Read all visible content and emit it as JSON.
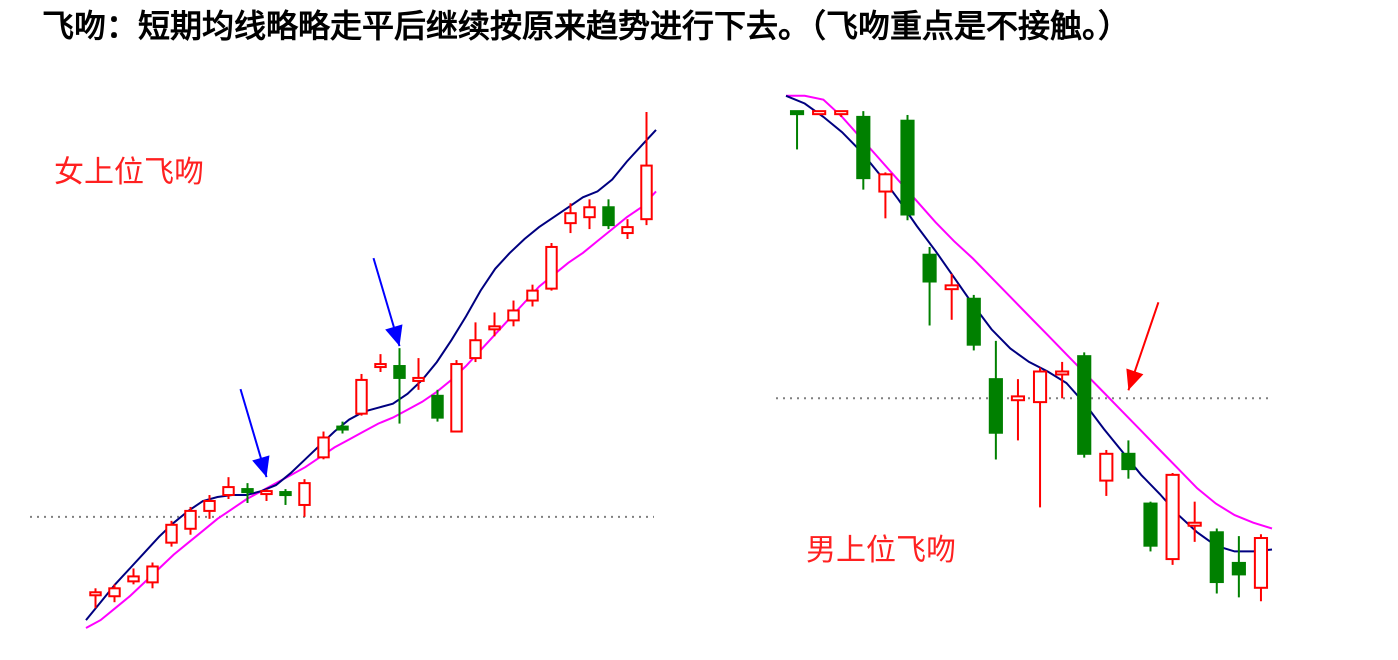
{
  "heading": "飞吻：短期均线略略走平后继续按原来趋势进行下去。（飞吻重点是不接触。）",
  "colors": {
    "up": "#ff0000",
    "down": "#008000",
    "short_ma": "#000080",
    "long_ma": "#ff00ff",
    "label": "#ff2020",
    "arrow_left": "#0000ff",
    "arrow_right": "#ff0000",
    "grid": "#808080"
  },
  "chart_data": [
    {
      "type": "candlestick",
      "title": "女上位飞吻",
      "series": [
        {
          "name": "",
          "points": [
            {
              "o": 0,
              "h": 0,
              "l": 0,
              "c": 0
            }
          ]
        }
      ],
      "candles": [
        {
          "d": "up",
          "o": 34,
          "c": 36,
          "h": 40,
          "l": 20
        },
        {
          "d": "up",
          "o": 32,
          "c": 40,
          "h": 44,
          "l": 26
        },
        {
          "d": "up",
          "o": 47,
          "c": 52,
          "h": 60,
          "l": 44
        },
        {
          "d": "up",
          "o": 46,
          "c": 62,
          "h": 66,
          "l": 40
        },
        {
          "d": "up",
          "o": 86,
          "c": 104,
          "h": 108,
          "l": 82
        },
        {
          "d": "up",
          "o": 100,
          "c": 118,
          "h": 122,
          "l": 94
        },
        {
          "d": "up",
          "o": 118,
          "c": 128,
          "h": 134,
          "l": 110
        },
        {
          "d": "up",
          "o": 134,
          "c": 142,
          "h": 152,
          "l": 130
        },
        {
          "d": "down",
          "o": 140,
          "c": 138,
          "h": 146,
          "l": 126
        },
        {
          "d": "up",
          "o": 137,
          "c": 138,
          "h": 140,
          "l": 128
        },
        {
          "d": "down",
          "o": 137,
          "c": 136,
          "h": 140,
          "l": 124
        },
        {
          "d": "up",
          "o": 124,
          "c": 146,
          "h": 150,
          "l": 112
        },
        {
          "d": "up",
          "o": 172,
          "c": 192,
          "h": 198,
          "l": 170
        },
        {
          "d": "down",
          "o": 203,
          "c": 201,
          "h": 208,
          "l": 196
        },
        {
          "d": "up",
          "o": 216,
          "c": 250,
          "h": 256,
          "l": 214
        },
        {
          "d": "up",
          "o": 264,
          "c": 266,
          "h": 276,
          "l": 258
        },
        {
          "d": "down",
          "o": 264,
          "c": 252,
          "h": 282,
          "l": 206
        },
        {
          "d": "up",
          "o": 250,
          "c": 252,
          "h": 272,
          "l": 240
        },
        {
          "d": "down",
          "o": 234,
          "c": 212,
          "h": 240,
          "l": 208
        },
        {
          "d": "up",
          "o": 198,
          "c": 266,
          "h": 270,
          "l": 198
        },
        {
          "d": "up",
          "o": 272,
          "c": 290,
          "h": 308,
          "l": 268
        },
        {
          "d": "up",
          "o": 302,
          "c": 304,
          "h": 318,
          "l": 294
        },
        {
          "d": "up",
          "o": 310,
          "c": 320,
          "h": 330,
          "l": 304
        },
        {
          "d": "up",
          "o": 330,
          "c": 340,
          "h": 346,
          "l": 324
        },
        {
          "d": "up",
          "o": 342,
          "c": 384,
          "h": 388,
          "l": 340
        },
        {
          "d": "up",
          "o": 408,
          "c": 418,
          "h": 428,
          "l": 398
        },
        {
          "d": "up",
          "o": 414,
          "c": 424,
          "h": 432,
          "l": 402
        },
        {
          "d": "down",
          "o": 424,
          "c": 406,
          "h": 432,
          "l": 402
        },
        {
          "d": "up",
          "o": 398,
          "c": 404,
          "h": 412,
          "l": 392
        },
        {
          "d": "up",
          "o": 412,
          "c": 466,
          "h": 520,
          "l": 406
        }
      ],
      "short_ma": [
        8,
        26,
        44,
        60,
        76,
        92,
        106,
        118,
        128,
        132,
        134,
        134,
        138,
        144,
        156,
        170,
        184,
        198,
        210,
        218,
        222,
        226,
        236,
        250,
        268,
        290,
        314,
        340,
        362,
        378,
        392,
        404,
        414,
        424,
        434,
        440,
        452,
        470,
        486,
        502
      ],
      "long_ma": [
        0,
        8,
        20,
        32,
        46,
        60,
        74,
        86,
        98,
        110,
        120,
        130,
        138,
        146,
        154,
        162,
        172,
        182,
        190,
        198,
        206,
        212,
        220,
        228,
        238,
        250,
        264,
        280,
        296,
        312,
        328,
        344,
        356,
        368,
        378,
        390,
        402,
        414,
        424,
        440
      ],
      "reference_line": 112,
      "y_range": [
        0,
        520
      ],
      "arrows": [
        {
          "target_index": 9,
          "value": 144
        },
        {
          "target_index": 16,
          "value": 276
        }
      ]
    },
    {
      "type": "candlestick",
      "title": "男上位飞吻",
      "candles": [
        {
          "d": "down",
          "o": 540,
          "c": 540,
          "h": 540,
          "l": 500
        },
        {
          "d": "up",
          "o": 540,
          "c": 540,
          "h": 540,
          "l": 536
        },
        {
          "d": "up",
          "o": 540,
          "c": 540,
          "h": 540,
          "l": 534
        },
        {
          "d": "down",
          "o": 534,
          "c": 470,
          "h": 540,
          "l": 458
        },
        {
          "d": "up",
          "o": 456,
          "c": 474,
          "h": 476,
          "l": 428
        },
        {
          "d": "down",
          "o": 530,
          "c": 432,
          "h": 536,
          "l": 426
        },
        {
          "d": "down",
          "o": 390,
          "c": 362,
          "h": 398,
          "l": 316
        },
        {
          "d": "up",
          "o": 354,
          "c": 358,
          "h": 370,
          "l": 322
        },
        {
          "d": "down",
          "o": 344,
          "c": 296,
          "h": 348,
          "l": 290
        },
        {
          "d": "down",
          "o": 260,
          "c": 204,
          "h": 300,
          "l": 176
        },
        {
          "d": "up",
          "o": 238,
          "c": 242,
          "h": 260,
          "l": 196
        },
        {
          "d": "up",
          "o": 236,
          "c": 268,
          "h": 272,
          "l": 126
        },
        {
          "d": "up",
          "o": 266,
          "c": 268,
          "h": 278,
          "l": 240
        },
        {
          "d": "down",
          "o": 284,
          "c": 182,
          "h": 288,
          "l": 178
        },
        {
          "d": "up",
          "o": 154,
          "c": 182,
          "h": 186,
          "l": 138
        },
        {
          "d": "down",
          "o": 182,
          "c": 166,
          "h": 196,
          "l": 156
        },
        {
          "d": "down",
          "o": 130,
          "c": 86,
          "h": 132,
          "l": 80
        },
        {
          "d": "up",
          "o": 72,
          "c": 160,
          "h": 162,
          "l": 66
        },
        {
          "d": "up",
          "o": 108,
          "c": 110,
          "h": 132,
          "l": 90
        },
        {
          "d": "down",
          "o": 100,
          "c": 48,
          "h": 104,
          "l": 36
        },
        {
          "d": "down",
          "o": 68,
          "c": 56,
          "h": 96,
          "l": 32
        },
        {
          "d": "up",
          "o": 42,
          "c": 94,
          "h": 98,
          "l": 28
        }
      ],
      "short_ma": [
        556,
        548,
        534,
        518,
        498,
        474,
        448,
        420,
        394,
        366,
        338,
        312,
        292,
        278,
        268,
        256,
        234,
        208,
        184,
        160,
        140,
        118,
        100,
        86,
        80,
        80,
        82
      ],
      "long_ma": [
        556,
        556,
        552,
        534,
        512,
        490,
        468,
        446,
        424,
        404,
        386,
        366,
        346,
        326,
        306,
        286,
        266,
        246,
        226,
        206,
        186,
        166,
        146,
        130,
        118,
        110,
        104
      ],
      "reference_line": 240,
      "y_range": [
        0,
        560
      ],
      "arrows": [
        {
          "target_index": 15,
          "value": 240
        }
      ]
    }
  ]
}
